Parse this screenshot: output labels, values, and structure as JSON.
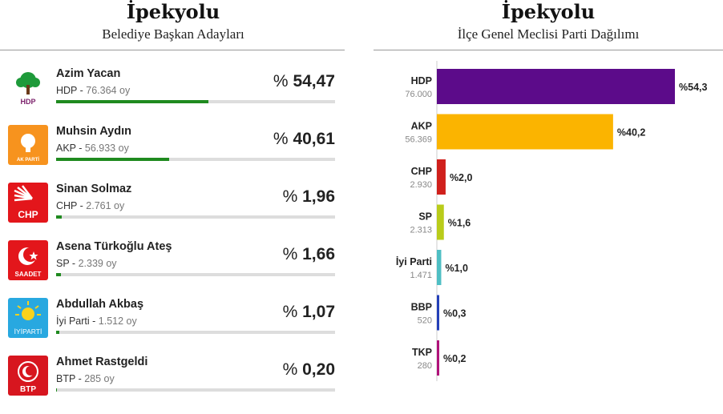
{
  "left": {
    "title": "İpekyolu",
    "subtitle": "Belediye Başkan Adayları",
    "candidates": [
      {
        "name": "Azim Yacan",
        "party": "HDP",
        "votes": "76.364 oy",
        "pct_symbol": "%",
        "pct": "54,47",
        "share": 54.47,
        "logo": "hdp-logo",
        "logo_text": "HDP",
        "color": "#1f8a1f"
      },
      {
        "name": "Muhsin Aydın",
        "party": "AKP",
        "votes": "56.933 oy",
        "pct_symbol": "%",
        "pct": "40,61",
        "share": 40.61,
        "logo": "akp-logo",
        "logo_text": "AK PARTİ",
        "color": "#1f8a1f"
      },
      {
        "name": "Sinan Solmaz",
        "party": "CHP",
        "votes": "2.761 oy",
        "pct_symbol": "%",
        "pct": "1,96",
        "share": 1.96,
        "logo": "chp-logo",
        "logo_text": "CHP",
        "color": "#1f8a1f"
      },
      {
        "name": "Asena Türkoğlu Ateş",
        "party": "SP",
        "votes": "2.339 oy",
        "pct_symbol": "%",
        "pct": "1,66",
        "share": 1.66,
        "logo": "sp-logo",
        "logo_text": "SAADET",
        "color": "#1f8a1f"
      },
      {
        "name": "Abdullah Akbaş",
        "party": "İyi Parti",
        "votes": "1.512 oy",
        "pct_symbol": "%",
        "pct": "1,07",
        "share": 1.07,
        "logo": "iyi-logo",
        "logo_text": "İYİPARTİ",
        "color": "#1f8a1f"
      },
      {
        "name": "Ahmet Rastgeldi",
        "party": "BTP",
        "votes": "285 oy",
        "pct_symbol": "%",
        "pct": "0,20",
        "share": 0.2,
        "logo": "btp-logo",
        "logo_text": "BTP",
        "color": "#1f8a1f"
      }
    ]
  },
  "right": {
    "title": "İpekyolu",
    "subtitle": "İlçe Genel Meclisi Parti Dağılımı"
  },
  "chart_data": {
    "type": "bar",
    "orientation": "horizontal",
    "title": "İpekyolu",
    "subtitle": "İlçe Genel Meclisi Parti Dağılımı",
    "categories": [
      "HDP",
      "AKP",
      "CHP",
      "SP",
      "İyi Parti",
      "BBP",
      "TKP"
    ],
    "votes_labels": [
      "76.000",
      "56.369",
      "2.930",
      "2.313",
      "1.471",
      "520",
      "280"
    ],
    "values": [
      54.3,
      40.2,
      2.0,
      1.6,
      1.0,
      0.3,
      0.2
    ],
    "value_labels": [
      "%54,3",
      "%40,2",
      "%2,0",
      "%1,6",
      "%1,0",
      "%0,3",
      "%0,2"
    ],
    "colors": [
      "#5c0b8a",
      "#fbb400",
      "#d0201c",
      "#b9cc1a",
      "#4fbfc4",
      "#2440b8",
      "#b0127a"
    ],
    "xlim": [
      0,
      54.3
    ],
    "grid": false,
    "legend": "none"
  }
}
